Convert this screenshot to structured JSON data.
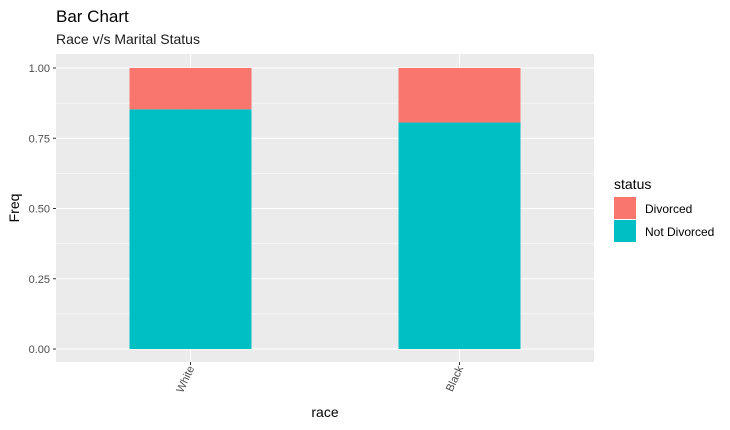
{
  "chart_data": {
    "type": "bar",
    "stacked": true,
    "title": "Bar Chart",
    "subtitle": "Race v/s Marital Status",
    "xlabel": "race",
    "ylabel": "Freq",
    "categories": [
      "White",
      "Black"
    ],
    "ylim": [
      0,
      1
    ],
    "yticks": [
      "0.00",
      "0.25",
      "0.50",
      "0.75",
      "1.00"
    ],
    "series": [
      {
        "name": "Not Divorced",
        "values": [
          0.853,
          0.806
        ],
        "color": "#00BFC4"
      },
      {
        "name": "Divorced",
        "values": [
          0.147,
          0.194
        ],
        "color": "#F8766D"
      }
    ],
    "legend": {
      "title": "status",
      "position": "right",
      "items": [
        "Divorced",
        "Not Divorced"
      ]
    },
    "grid": true,
    "panel_background": "#EBEBEB",
    "gridline_color": "#FFFFFF"
  }
}
